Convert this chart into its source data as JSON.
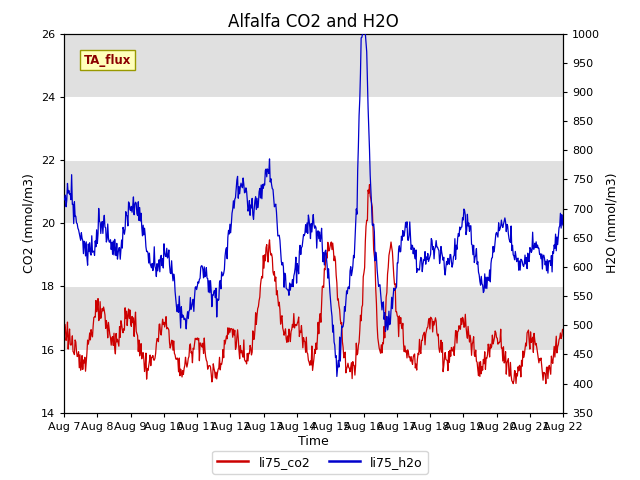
{
  "title": "Alfalfa CO2 and H2O",
  "xlabel": "Time",
  "ylabel_left": "CO2 (mmol/m3)",
  "ylabel_right": "H2O (mmol/m3)",
  "ylim_left": [
    14,
    26
  ],
  "ylim_right": [
    350,
    1000
  ],
  "yticks_left": [
    14,
    16,
    18,
    20,
    22,
    24,
    26
  ],
  "yticks_right": [
    350,
    400,
    450,
    500,
    550,
    600,
    650,
    700,
    750,
    800,
    850,
    900,
    950,
    1000
  ],
  "xtick_labels": [
    "Aug 7",
    "Aug 8",
    "Aug 9",
    "Aug 10",
    "Aug 11",
    "Aug 12",
    "Aug 13",
    "Aug 14",
    "Aug 15",
    "Aug 16",
    "Aug 17",
    "Aug 18",
    "Aug 19",
    "Aug 20",
    "Aug 21",
    "Aug 22"
  ],
  "color_co2": "#cc0000",
  "color_h2o": "#0000cc",
  "legend_label_co2": "li75_co2",
  "legend_label_h2o": "li75_h2o",
  "annotation_text": "TA_flux",
  "bg_color": "#e0e0e0",
  "band_color": "#cccccc",
  "grid_color": "#ffffff",
  "title_fontsize": 12,
  "axis_fontsize": 9,
  "tick_fontsize": 8
}
